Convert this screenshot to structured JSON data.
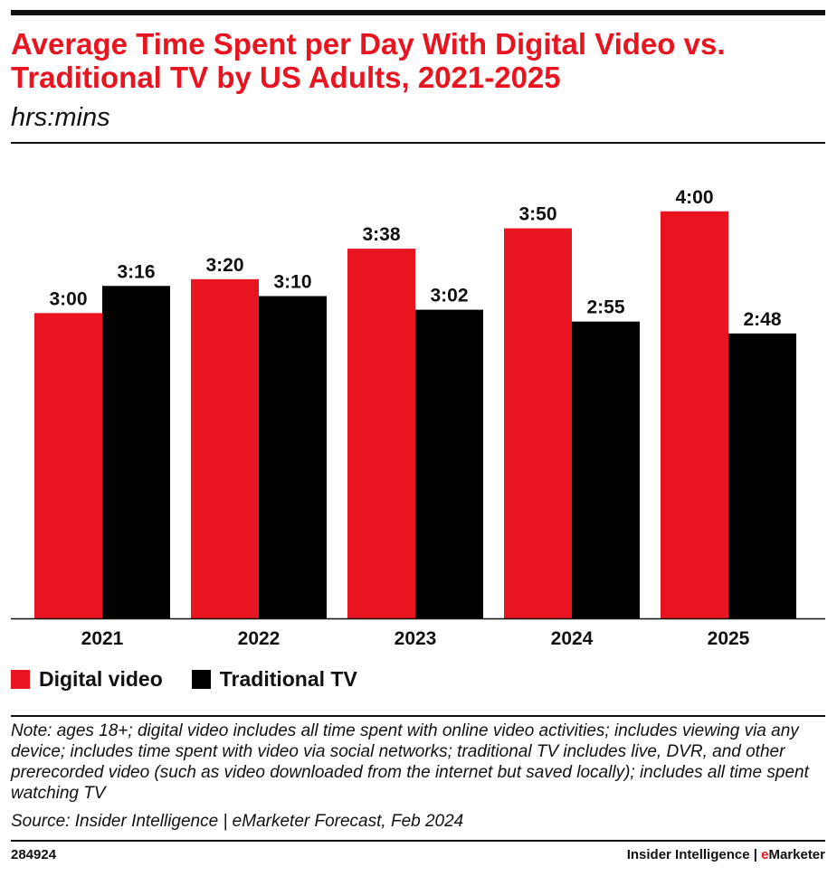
{
  "header": {
    "title": "Average Time Spent per Day With Digital Video vs. Traditional TV by US Adults, 2021-2025",
    "subtitle": "hrs:mins"
  },
  "chart_data": {
    "type": "bar",
    "categories": [
      "2021",
      "2022",
      "2023",
      "2024",
      "2025"
    ],
    "unit": "hrs:mins",
    "ylim": [
      0,
      4.3
    ],
    "grid": false,
    "legend_position": "bottom-left",
    "series": [
      {
        "name": "Digital video",
        "color": "#e8141f",
        "values": [
          3.0,
          3.333,
          3.633,
          3.833,
          4.0
        ],
        "labels": [
          "3:00",
          "3:20",
          "3:38",
          "3:50",
          "4:00"
        ]
      },
      {
        "name": "Traditional TV",
        "color": "#000000",
        "values": [
          3.267,
          3.167,
          3.033,
          2.917,
          2.8
        ],
        "labels": [
          "3:16",
          "3:10",
          "3:02",
          "2:55",
          "2:48"
        ]
      }
    ]
  },
  "legend": {
    "items": [
      {
        "label": "Digital video",
        "color": "#e8141f"
      },
      {
        "label": "Traditional TV",
        "color": "#000000"
      }
    ]
  },
  "footer": {
    "note": "Note: ages 18+; digital video includes all time spent with online video activities; includes viewing via any device; includes time spent with video via social networks; traditional TV includes live, DVR, and other prerecorded video (such as video downloaded from the internet but saved locally); includes all time spent watching TV",
    "source": "Source: Insider Intelligence | eMarketer Forecast, Feb 2024",
    "chart_id": "284924",
    "brand_prefix": "Insider Intelligence | ",
    "brand_e": "e",
    "brand_rest": "Marketer"
  }
}
